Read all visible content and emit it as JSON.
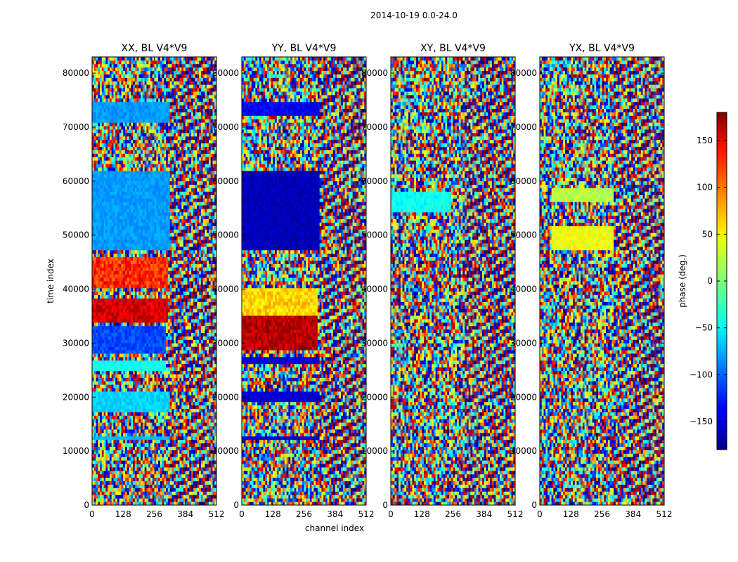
{
  "suptitle": "2014-10-19 0.0-24.0",
  "chart_data": {
    "type": "heatmap",
    "colormap": "jet",
    "panels": [
      {
        "title": "XX, BL V4*V9"
      },
      {
        "title": "YY, BL V4*V9"
      },
      {
        "title": "XY, BL V4*V9"
      },
      {
        "title": "YX, BL V4*V9"
      }
    ],
    "xlabel": "channel index",
    "ylabel": "time index",
    "xlim": [
      0,
      512
    ],
    "ylim": [
      0,
      83000
    ],
    "xticks": [
      0,
      128,
      256,
      384,
      512
    ],
    "yticks": [
      0,
      10000,
      20000,
      30000,
      40000,
      50000,
      60000,
      70000,
      80000
    ],
    "colorbar": {
      "label": "phase (deg.)",
      "range": [
        -180,
        180
      ],
      "ticks": [
        -150,
        -100,
        -50,
        0,
        50,
        100,
        150
      ]
    }
  }
}
